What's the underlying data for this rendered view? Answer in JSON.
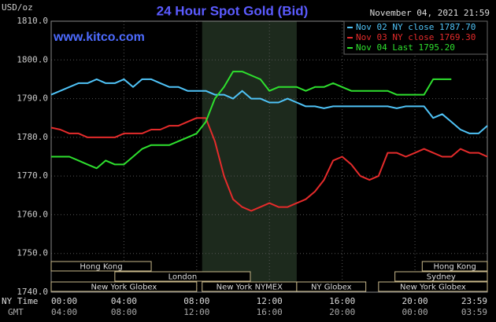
{
  "chart_data": {
    "type": "line",
    "title": "24 Hour Spot Gold (Bid)",
    "y_unit": "USD/oz",
    "date": "November 04, 2021 21:59",
    "watermark": "www.kitco.com",
    "x_row_label": "NY Time",
    "x2_row_label": "GMT",
    "x": [
      0,
      0.5,
      1,
      1.5,
      2,
      2.5,
      3,
      3.5,
      4,
      4.5,
      5,
      5.5,
      6,
      6.5,
      7,
      7.5,
      8,
      8.5,
      9,
      9.5,
      10,
      10.5,
      11,
      11.5,
      12,
      12.5,
      13,
      13.5,
      14,
      14.5,
      15,
      15.5,
      16,
      16.5,
      17,
      17.5,
      18,
      18.5,
      19,
      19.5,
      20,
      20.5,
      21,
      21.5,
      22,
      22.5,
      23,
      23.5,
      23.98
    ],
    "xlim": [
      0,
      23.98
    ],
    "xticks": [
      {
        "value": 0,
        "label": "00:00"
      },
      {
        "value": 4,
        "label": "04:00"
      },
      {
        "value": 8,
        "label": "08:00"
      },
      {
        "value": 12,
        "label": "12:00"
      },
      {
        "value": 16,
        "label": "16:00"
      },
      {
        "value": 20,
        "label": "20:00"
      },
      {
        "value": 23.98,
        "label": "23:59"
      }
    ],
    "x2tick_labels": [
      "04:00",
      "08:00",
      "12:00",
      "16:00",
      "20:00",
      "00:00",
      "03:59"
    ],
    "ylim": [
      1740,
      1810
    ],
    "yticks": [
      {
        "value": 1740,
        "label": "1740.0"
      },
      {
        "value": 1750,
        "label": "1750.0"
      },
      {
        "value": 1760,
        "label": "1760.0"
      },
      {
        "value": 1770,
        "label": "1770.0"
      },
      {
        "value": 1780,
        "label": "1780.0"
      },
      {
        "value": 1790,
        "label": "1790.0"
      },
      {
        "value": 1800,
        "label": "1800.0"
      },
      {
        "value": 1810,
        "label": "1810.0"
      }
    ],
    "grid": true,
    "legend": "top-right",
    "series": [
      {
        "name": "Nov 02 NY close 1787.70",
        "color": "#4fc3f7",
        "values": [
          1791,
          1792,
          1793,
          1794,
          1794,
          1795,
          1794,
          1794,
          1795,
          1793,
          1795,
          1795,
          1794,
          1793,
          1793,
          1792,
          1792,
          1792,
          1791,
          1791,
          1790,
          1792,
          1790,
          1790,
          1789,
          1789,
          1790,
          1789,
          1788,
          1788,
          1787.5,
          1788,
          1788,
          1788,
          1788,
          1788,
          1788,
          1788,
          1787.5,
          1788,
          1788,
          1788,
          1785,
          1786,
          1784,
          1782,
          1781,
          1781,
          1783
        ]
      },
      {
        "name": "Nov 03 NY close 1769.30",
        "color": "#e52b2b",
        "values": [
          1782.5,
          1782,
          1781,
          1781,
          1780,
          1780,
          1780,
          1780,
          1781,
          1781,
          1781,
          1782,
          1782,
          1783,
          1783,
          1784,
          1785,
          1785,
          1779,
          1770,
          1764,
          1762,
          1761,
          1762,
          1763,
          1762,
          1762,
          1763,
          1764,
          1766,
          1769,
          1774,
          1775,
          1773,
          1770,
          1769,
          1770,
          1776,
          1776,
          1775,
          1776,
          1777,
          1776,
          1775,
          1775,
          1777,
          1776,
          1776,
          1775
        ]
      },
      {
        "name": "Nov 04 Last 1795.20",
        "color": "#2ee02e",
        "values": [
          1775,
          1775,
          1775,
          1774,
          1773,
          1772,
          1774,
          1773,
          1773,
          1775,
          1777,
          1778,
          1778,
          1778,
          1779,
          1780,
          1781,
          1784,
          1790,
          1793,
          1797,
          1797,
          1796,
          1795,
          1792,
          1793,
          1793,
          1793,
          1792,
          1793,
          1793,
          1794,
          1793,
          1792,
          1792,
          1792,
          1792,
          1792,
          1791,
          1791,
          1791,
          1791,
          1795,
          1795,
          1795,
          null,
          null,
          null,
          null
        ]
      }
    ],
    "sessions": [
      {
        "label": "Hong Kong",
        "start": 0,
        "end": 5.5,
        "row": 0
      },
      {
        "label": "London",
        "start": 3.5,
        "end": 10.95,
        "row": 1
      },
      {
        "label": "New York Globex",
        "start": 0,
        "end": 8,
        "row": 2
      },
      {
        "label": "New York NYMEX",
        "start": 8.3,
        "end": 13.5,
        "row": 2,
        "shade": true
      },
      {
        "label": "NY Globex",
        "start": 13.5,
        "end": 17.3,
        "row": 2
      },
      {
        "label": "New York Globex",
        "start": 18,
        "end": 23.98,
        "row": 2
      },
      {
        "label": "Sydney",
        "start": 18.9,
        "end": 23.98,
        "row": 1
      },
      {
        "label": "Hong Kong",
        "start": 20.4,
        "end": 23.98,
        "row": 0
      }
    ]
  }
}
